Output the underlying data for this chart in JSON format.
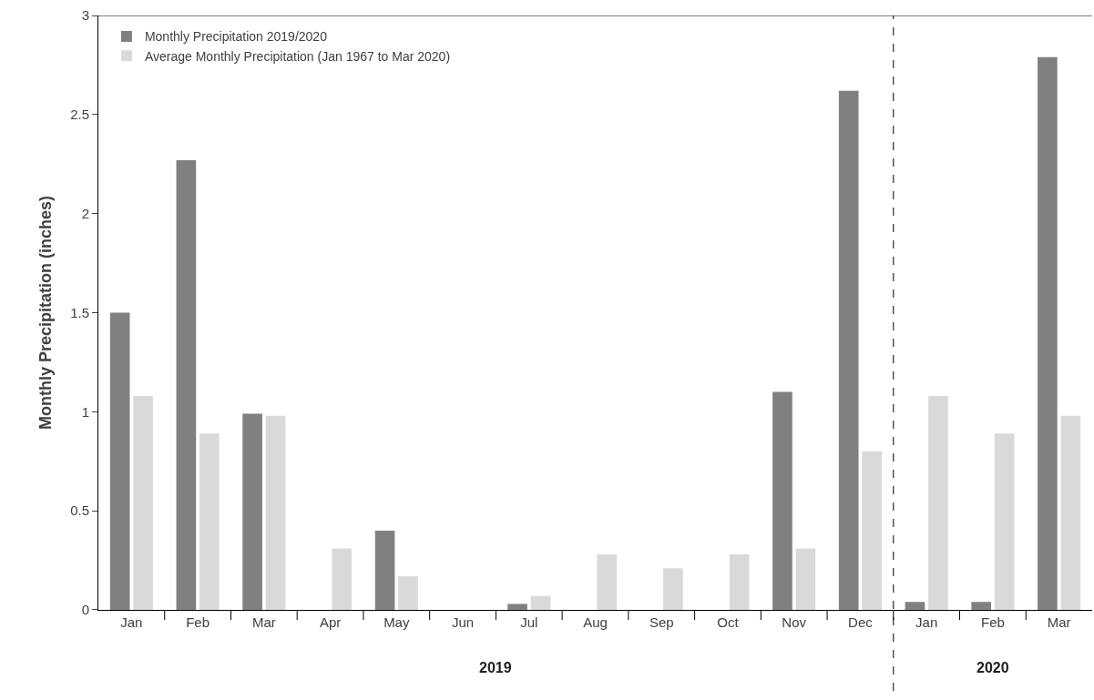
{
  "chart_data": {
    "type": "bar",
    "ylabel": "Monthly Precipitation (inches)",
    "categories": [
      "Jan",
      "Feb",
      "Mar",
      "Apr",
      "May",
      "Jun",
      "Jul",
      "Aug",
      "Sep",
      "Oct",
      "Nov",
      "Dec",
      "Jan",
      "Feb",
      "Mar"
    ],
    "ylim": [
      0,
      3
    ],
    "yticks": [
      0,
      0.5,
      1,
      1.5,
      2,
      2.5,
      3
    ],
    "series": [
      {
        "name": "Monthly Precipitation 2019/2020",
        "color": "#808080",
        "values": [
          1.5,
          2.27,
          0.99,
          0,
          0.4,
          0,
          0.03,
          0,
          0,
          0,
          1.1,
          2.62,
          0.04,
          0.04,
          2.79
        ]
      },
      {
        "name": "Average Monthly Precipitation (Jan 1967 to Mar 2020)",
        "color": "#d9d9d9",
        "values": [
          1.08,
          0.89,
          0.98,
          0.31,
          0.17,
          0,
          0.07,
          0.28,
          0.21,
          0.28,
          0.31,
          0.8,
          1.08,
          0.89,
          0.98
        ]
      }
    ],
    "annotations": [
      "2019",
      "2020"
    ],
    "legend": "top left"
  }
}
